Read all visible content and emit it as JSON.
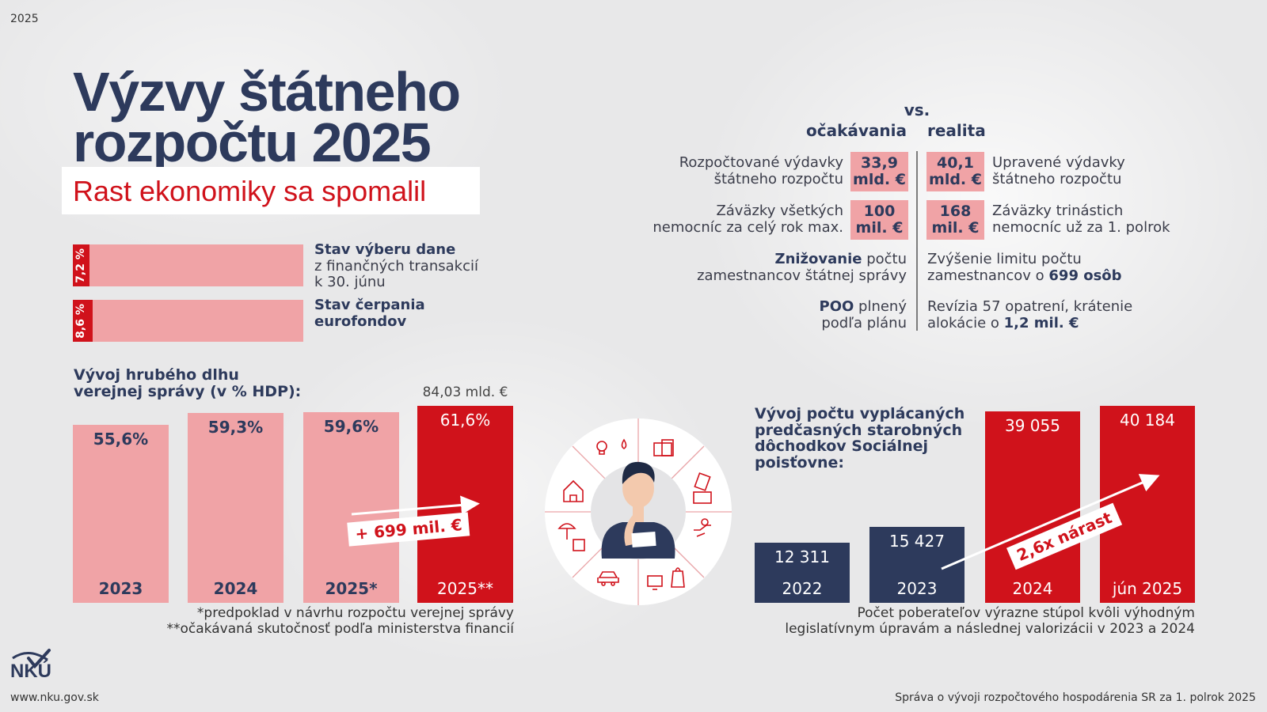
{
  "header": {
    "year": "2025",
    "title_lines": [
      "Výzvy štátneho",
      "rozpočtu 2025"
    ],
    "subtitle": "Rast ekonomiky sa spomalil"
  },
  "chart_data": [
    {
      "type": "progress",
      "categories": [
        [
          [
            {
              "text": "Stav výberu dane",
              "bold": true
            }
          ],
          [
            "z finančných transakcií"
          ],
          [
            "k 30. júnu"
          ]
        ],
        [
          [
            {
              "text": "Stav čerpania",
              "bold": true
            }
          ],
          [
            {
              "text": "eurofondov",
              "bold": true
            }
          ]
        ]
      ],
      "values": [
        7.2,
        8.6
      ],
      "value_labels": [
        "7,2 %",
        "8,6 %"
      ],
      "xlim": [
        0,
        100
      ],
      "color": "#d0121b",
      "track_color": "#f0a3a6"
    },
    {
      "type": "bar",
      "title_lines": [
        "Vývoj hrubého dlhu",
        "verejnej správy (v % HDP):"
      ],
      "categories": [
        "2023",
        "2024",
        "2025*",
        "2025**"
      ],
      "values": [
        55.6,
        59.3,
        59.6,
        61.6
      ],
      "value_labels": [
        "55,6%",
        "59,3%",
        "59,6%",
        "61,6%"
      ],
      "colors": [
        "#f0a3a6",
        "#f0a3a6",
        "#f0a3a6",
        "#d0121b"
      ],
      "annotations": [
        "84,03 mld. €",
        "+ 699 mil. €"
      ],
      "footnotes": [
        "*predpoklad v návrhu rozpočtu verejnej správy",
        "**očakávaná skutočnosť podľa ministerstva financií"
      ]
    },
    {
      "type": "bar",
      "title_lines": [
        "Vývoj počtu vyplácaných",
        "predčasných starobných",
        "dôchodkov Sociálnej",
        "poisťovne:"
      ],
      "categories": [
        "2022",
        "2023",
        "2024",
        "jún 2025"
      ],
      "values": [
        12311,
        15427,
        39055,
        40184
      ],
      "value_labels": [
        "12 311",
        "15 427",
        "39 055",
        "40 184"
      ],
      "colors": [
        "#2d3a5c",
        "#2d3a5c",
        "#d0121b",
        "#d0121b"
      ],
      "annotations": [
        "2,6x nárast"
      ],
      "footnotes": [
        "Počet poberateľov výrazne stúpol kvôli výhodným",
        "legislatívnym úpravám a následnej valorizácii v 2023 a 2024"
      ]
    }
  ],
  "comparison": {
    "vs": "vs.",
    "left_header": "očakávania",
    "right_header": "realita",
    "box_color": "#f0a3a6",
    "rows": [
      {
        "left": [
          [
            "Rozpočtované výdavky"
          ],
          [
            "štátneho rozpočtu"
          ]
        ],
        "left_value": [
          "33,9",
          "mld. €"
        ],
        "right_value": [
          "40,1",
          "mld. €"
        ],
        "right": [
          [
            "Upravené výdavky"
          ],
          [
            "štátneho rozpočtu"
          ]
        ]
      },
      {
        "left": [
          [
            "Záväzky všetkých"
          ],
          [
            "nemocníc za celý rok max."
          ]
        ],
        "left_value": [
          "100",
          "mil. €"
        ],
        "right_value": [
          "168",
          "mil. €"
        ],
        "right": [
          [
            "Záväzky trinástich"
          ],
          [
            "nemocníc už za 1. polrok"
          ]
        ]
      },
      {
        "left": [
          [
            {
              "text": "Znižovanie",
              "bold": true
            },
            " počtu"
          ],
          [
            "zamestnancov štátnej správy"
          ]
        ],
        "right": [
          [
            "Zvýšenie limitu počtu"
          ],
          [
            "zamestnancov o ",
            {
              "text": "699 osôb",
              "bold": true
            }
          ]
        ]
      },
      {
        "left": [
          [
            {
              "text": "POO",
              "bold": true
            },
            " plnený"
          ],
          [
            "podľa plánu"
          ]
        ],
        "right": [
          [
            "Revízia 57 opatrení, krátenie"
          ],
          [
            "alokácie o ",
            {
              "text": "1,2 mil. €",
              "bold": true
            }
          ]
        ]
      }
    ]
  },
  "footer": {
    "logo": "NKÚ",
    "website": "www.nku.gov.sk",
    "report": "Správa o vývoji rozpočtového hospodárenia SR za 1. polrok 2025"
  }
}
